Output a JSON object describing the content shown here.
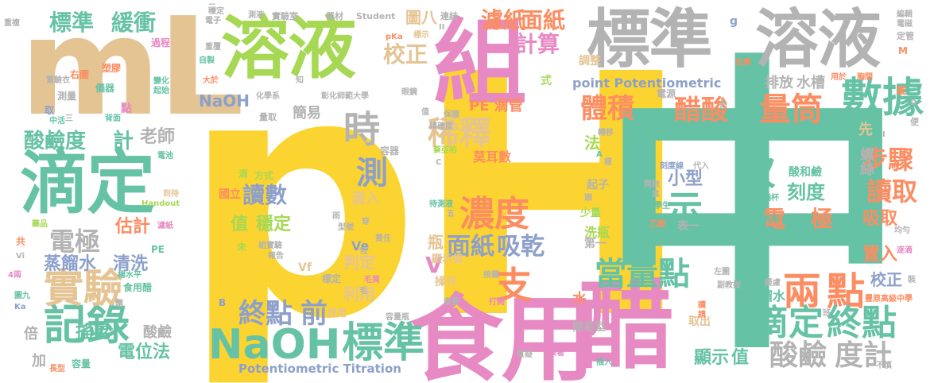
{
  "colors": {
    "yellow": "#fcd431",
    "teal": "#66c2a5",
    "pink": "#e78ac3",
    "orange": "#fc8d62",
    "blue": "#8da0cb",
    "green": "#a6d854",
    "tan": "#e5c494",
    "gray": "#b3b3b3"
  },
  "words": [
    {
      "text": "pH",
      "color": "yellow"
    },
    {
      "text": "中",
      "color": "teal"
    },
    {
      "text": "食用",
      "color": "pink"
    },
    {
      "text": "醋",
      "color": "pink"
    },
    {
      "text": "mL",
      "color": "tan"
    },
    {
      "text": "溶液",
      "color": "green"
    },
    {
      "text": "標準",
      "color": "gray"
    },
    {
      "text": "溶液",
      "color": "gray"
    },
    {
      "text": "組",
      "color": "pink"
    },
    {
      "text": "滴定",
      "color": "teal"
    },
    {
      "text": "NaOH",
      "color": "teal"
    },
    {
      "text": "標準",
      "color": "teal"
    },
    {
      "text": "記錄",
      "color": "teal"
    },
    {
      "text": "實驗",
      "color": "tan"
    },
    {
      "text": "數據",
      "color": "teal"
    },
    {
      "text": "量筒",
      "color": "orange"
    },
    {
      "text": "醋酸",
      "color": "orange"
    },
    {
      "text": "體積",
      "color": "orange"
    },
    {
      "text": "稀釋",
      "color": "tan"
    },
    {
      "text": "時",
      "color": "gray"
    },
    {
      "text": "測",
      "color": "blue"
    },
    {
      "text": "濃度",
      "color": "orange"
    },
    {
      "text": "支",
      "color": "orange"
    },
    {
      "text": "面紙",
      "color": "blue"
    },
    {
      "text": "吸乾",
      "color": "blue"
    },
    {
      "text": "電極",
      "color": "gray"
    },
    {
      "text": "蒸餾水",
      "color": "blue"
    },
    {
      "text": "清洗",
      "color": "blue"
    },
    {
      "text": "酸鹼度",
      "color": "teal"
    },
    {
      "text": "計",
      "color": "teal"
    },
    {
      "text": "讀數",
      "color": "blue"
    },
    {
      "text": "終點",
      "color": "blue"
    },
    {
      "text": "前",
      "color": "blue"
    },
    {
      "text": "當量點",
      "color": "teal"
    },
    {
      "text": "兩",
      "color": "orange"
    },
    {
      "text": "點",
      "color": "orange"
    },
    {
      "text": "滴定",
      "color": "teal"
    },
    {
      "text": "終點",
      "color": "teal"
    },
    {
      "text": "酸鹼",
      "color": "gray"
    },
    {
      "text": "度計",
      "color": "gray"
    },
    {
      "text": "步驟",
      "color": "orange"
    },
    {
      "text": "讀取",
      "color": "orange"
    },
    {
      "text": "次",
      "color": "teal"
    },
    {
      "text": "示",
      "color": "teal"
    },
    {
      "text": "電",
      "color": "orange"
    },
    {
      "text": "極",
      "color": "orange"
    },
    {
      "text": "刻度",
      "color": "teal"
    },
    {
      "text": "小型",
      "color": "blue"
    },
    {
      "text": "標準",
      "color": "teal"
    },
    {
      "text": "緩衝",
      "color": "teal"
    },
    {
      "text": "濾紙",
      "color": "orange"
    },
    {
      "text": "面紙",
      "color": "orange"
    },
    {
      "text": "計算",
      "color": "pink"
    },
    {
      "text": "校正",
      "color": "tan"
    },
    {
      "text": "NaOH",
      "color": "blue"
    },
    {
      "text": "Potentiometric Titration",
      "color": "blue"
    },
    {
      "text": "point Potentiometric",
      "color": "blue"
    },
    {
      "text": "排放",
      "color": "gray"
    },
    {
      "text": "水槽",
      "color": "gray"
    },
    {
      "text": "值",
      "color": "green"
    },
    {
      "text": "穩定",
      "color": "green"
    },
    {
      "text": "瓶",
      "color": "tan"
    },
    {
      "text": "滴入",
      "color": "tan"
    },
    {
      "text": "搖晃",
      "color": "teal"
    },
    {
      "text": "電位法",
      "color": "teal"
    },
    {
      "text": "酸鹼",
      "color": "gray"
    },
    {
      "text": "估計",
      "color": "orange"
    },
    {
      "text": "老師",
      "color": "gray"
    },
    {
      "text": "顯示",
      "color": "teal"
    },
    {
      "text": "值",
      "color": "teal"
    },
    {
      "text": "吸取",
      "color": "orange"
    },
    {
      "text": "置入",
      "color": "orange"
    },
    {
      "text": "校正",
      "color": "blue"
    },
    {
      "text": "蒸餾水",
      "color": "teal"
    },
    {
      "text": "簡易",
      "color": "gray"
    },
    {
      "text": "判定",
      "color": "tan"
    },
    {
      "text": "利用",
      "color": "tan"
    },
    {
      "text": "PE 滴管",
      "color": "orange"
    },
    {
      "text": "莫耳數",
      "color": "orange"
    },
    {
      "text": "螺絲",
      "color": "gray"
    },
    {
      "text": "V",
      "color": "pink"
    },
    {
      "text": "法",
      "color": "green"
    },
    {
      "text": "先",
      "color": "tan"
    },
    {
      "text": "倍",
      "color": "gray"
    },
    {
      "text": "加",
      "color": "gray"
    },
    {
      "text": "水",
      "color": "orange"
    },
    {
      "text": "簡易型",
      "color": "gray"
    },
    {
      "text": "圖八",
      "color": "tan"
    },
    {
      "text": "酸和鹼",
      "color": "teal"
    },
    {
      "text": "起子",
      "color": "gray"
    },
    {
      "text": "少量",
      "color": "green"
    },
    {
      "text": "洗瓶",
      "color": "green"
    },
    {
      "text": "第一",
      "color": "gray"
    },
    {
      "text": "表一",
      "color": "gray"
    },
    {
      "text": "顯示值",
      "color": "tan"
    },
    {
      "text": "操作",
      "color": "tan"
    },
    {
      "text": "取出",
      "color": "tan"
    },
    {
      "text": "Ve",
      "color": "blue"
    },
    {
      "text": "Vf",
      "color": "tan"
    },
    {
      "text": "方式",
      "color": "green"
    },
    {
      "text": "國立",
      "color": "orange"
    },
    {
      "text": "彰化師範大學",
      "color": "gray"
    },
    {
      "text": "化學系",
      "color": "gray"
    },
    {
      "text": "量取",
      "color": "gray"
    },
    {
      "text": "實驗室",
      "color": "gray"
    },
    {
      "text": "器材",
      "color": "gray"
    },
    {
      "text": "Student",
      "color": "gray"
    },
    {
      "text": "連結",
      "color": "gray"
    },
    {
      "text": "調整",
      "color": "tan"
    },
    {
      "text": "式",
      "color": "green"
    },
    {
      "text": "g",
      "color": "blue"
    },
    {
      "text": "M",
      "color": "orange"
    },
    {
      "text": "化學",
      "color": "orange"
    },
    {
      "text": "定管",
      "color": "gray"
    },
    {
      "text": "電磁",
      "color": "gray"
    },
    {
      "text": "編輯",
      "color": "gray"
    },
    {
      "text": "用於",
      "color": "orange"
    },
    {
      "text": "胸間",
      "color": "orange"
    },
    {
      "text": "戴",
      "color": "orange"
    },
    {
      "text": "電源",
      "color": "gray"
    },
    {
      "text": "便",
      "color": "gray"
    },
    {
      "text": "均勻",
      "color": "gray"
    },
    {
      "text": "逐滴",
      "color": "pink"
    },
    {
      "text": "裝",
      "color": "gray"
    },
    {
      "text": "豐原高級中學",
      "color": "orange"
    },
    {
      "text": "化學科",
      "color": "teal"
    },
    {
      "text": "副教授",
      "color": "gray"
    },
    {
      "text": "疑慮",
      "color": "gray"
    },
    {
      "text": "燒杯",
      "color": "teal"
    },
    {
      "text": "斜率",
      "color": "teal"
    },
    {
      "text": "學生",
      "color": "teal"
    },
    {
      "text": "乙酸",
      "color": "orange"
    },
    {
      "text": "刻度線",
      "color": "blue"
    },
    {
      "text": "代入",
      "color": "gray"
    },
    {
      "text": "開啟",
      "color": "gray"
    },
    {
      "text": "左圖",
      "color": "gray"
    },
    {
      "text": "讀",
      "color": "orange"
    },
    {
      "text": "請",
      "color": "orange"
    },
    {
      "text": "插入",
      "color": "teal"
    },
    {
      "text": "摸著",
      "color": "pink"
    },
    {
      "text": "質疑",
      "color": "gray"
    },
    {
      "text": "打開",
      "color": "pink"
    },
    {
      "text": "泰豐",
      "color": "gray"
    },
    {
      "text": "容器",
      "color": "gray"
    },
    {
      "text": "PE",
      "color": "teal"
    },
    {
      "text": "食用醋",
      "color": "teal"
    },
    {
      "text": "楊水平",
      "color": "teal"
    },
    {
      "text": "濾紙",
      "color": "pink"
    },
    {
      "text": "藥品",
      "color": "green"
    },
    {
      "text": "共",
      "color": "orange"
    },
    {
      "text": "Vi",
      "color": "gray"
    },
    {
      "text": "4兩",
      "color": "pink"
    },
    {
      "text": "圖九",
      "color": "teal"
    },
    {
      "text": "Ka",
      "color": "blue"
    },
    {
      "text": "長型",
      "color": "orange"
    },
    {
      "text": "容量",
      "color": "teal"
    },
    {
      "text": "重複",
      "color": "gray"
    },
    {
      "text": "右圖",
      "color": "orange"
    },
    {
      "text": "實驗衣",
      "color": "gray"
    },
    {
      "text": "測量",
      "color": "gray"
    },
    {
      "text": "取",
      "color": "blue"
    },
    {
      "text": "中活",
      "color": "teal"
    },
    {
      "text": "背面",
      "color": "teal"
    },
    {
      "text": "電池",
      "color": "teal"
    },
    {
      "text": "到待",
      "color": "tan"
    },
    {
      "text": "Handout",
      "color": "green"
    },
    {
      "text": "過程",
      "color": "pink"
    },
    {
      "text": "塑膠",
      "color": "orange"
    },
    {
      "text": "儀器",
      "color": "teal"
    },
    {
      "text": "變化",
      "color": "teal"
    },
    {
      "text": "起始",
      "color": "teal"
    },
    {
      "text": "大於",
      "color": "orange"
    },
    {
      "text": "點",
      "color": "pink"
    },
    {
      "text": "自製",
      "color": "teal"
    },
    {
      "text": "重覆",
      "color": "gray"
    },
    {
      "text": "電子",
      "color": "gray"
    },
    {
      "text": "知",
      "color": "gray"
    },
    {
      "text": "測液",
      "color": "gray"
    },
    {
      "text": "pKa",
      "color": "orange"
    },
    {
      "text": "標示",
      "color": "tan"
    },
    {
      "text": "眼鏡",
      "color": "gray"
    },
    {
      "text": "保護",
      "color": "gray"
    },
    {
      "text": "精確度",
      "color": "gray"
    },
    {
      "text": "蔡亞柏",
      "color": "green"
    },
    {
      "text": "轉移",
      "color": "gray"
    },
    {
      "text": "待測液",
      "color": "teal"
    },
    {
      "text": "型號",
      "color": "gray"
    },
    {
      "text": "責任",
      "color": "gray"
    },
    {
      "text": "毛屑",
      "color": "pink"
    },
    {
      "text": "組實驗",
      "color": "gray"
    },
    {
      "text": "報告",
      "color": "gray"
    },
    {
      "text": "未",
      "color": "green"
    },
    {
      "text": "採用",
      "color": "tan"
    },
    {
      "text": "容量瓶",
      "color": "gray"
    },
    {
      "text": "接觸",
      "color": "gray"
    },
    {
      "text": "不慎",
      "color": "gray"
    },
    {
      "text": "穩定",
      "color": "gray"
    },
    {
      "text": "仍",
      "color": "gray"
    },
    {
      "text": "頭",
      "color": "gray"
    },
    {
      "text": "C",
      "color": "gray"
    },
    {
      "text": "A",
      "color": "teal"
    },
    {
      "text": "D",
      "color": "gray"
    },
    {
      "text": "B",
      "color": "blue"
    },
    {
      "text": "五",
      "color": "gray"
    },
    {
      "text": "包",
      "color": "gray"
    },
    {
      "text": "雨",
      "color": "gray"
    },
    {
      "text": "穿",
      "color": "gray"
    },
    {
      "text": "滴",
      "color": "green"
    },
    {
      "text": "醋",
      "color": "gray"
    },
    {
      "text": "盒",
      "color": "gray"
    },
    {
      "text": "II",
      "color": "gray"
    },
    {
      "text": "子",
      "color": "gray"
    },
    {
      "text": "二",
      "color": "gray"
    },
    {
      "text": "三",
      "color": "gray"
    },
    {
      "text": "值",
      "color": "gray"
    },
    {
      "text": "瘦",
      "color": "gray"
    },
    {
      "text": "班",
      "color": "gray"
    },
    {
      "text": "I",
      "color": "gray"
    },
    {
      "text": "標定",
      "color": "gray"
    },
    {
      "text": "毛",
      "color": "gray"
    }
  ]
}
